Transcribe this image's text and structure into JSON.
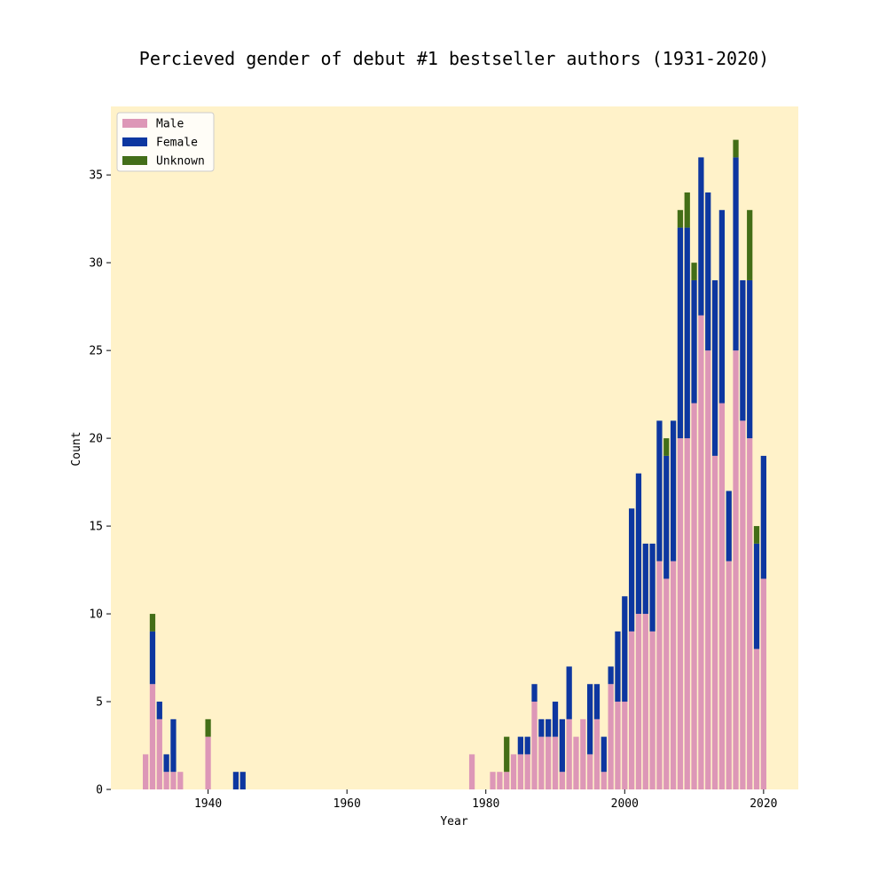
{
  "chart_data": {
    "type": "bar",
    "stacked": true,
    "title": "Percieved gender of debut #1 bestseller authors (1931-2020)",
    "xlabel": "Year",
    "ylabel": "Count",
    "xlim": [
      1926,
      2025
    ],
    "ylim": [
      0,
      38.9
    ],
    "xticks": [
      1940,
      1960,
      1980,
      2000,
      2020
    ],
    "yticks": [
      0,
      5,
      10,
      15,
      20,
      25,
      30,
      35
    ],
    "grid": false,
    "legend_position": "top-left",
    "plot_background": "#fff2c9",
    "x": [
      1931,
      1932,
      1933,
      1934,
      1935,
      1936,
      1940,
      1944,
      1945,
      1978,
      1981,
      1982,
      1983,
      1984,
      1985,
      1986,
      1987,
      1988,
      1989,
      1990,
      1991,
      1992,
      1993,
      1994,
      1995,
      1996,
      1997,
      1998,
      1999,
      2000,
      2001,
      2002,
      2003,
      2004,
      2005,
      2006,
      2007,
      2008,
      2009,
      2010,
      2011,
      2012,
      2013,
      2014,
      2015,
      2016,
      2017,
      2018,
      2019,
      2020
    ],
    "series": [
      {
        "name": "Male",
        "color": "#dd97b7",
        "values": [
          2,
          6,
          4,
          1,
          1,
          1,
          3,
          0,
          0,
          2,
          1,
          1,
          1,
          2,
          2,
          2,
          5,
          3,
          3,
          3,
          1,
          4,
          3,
          4,
          2,
          4,
          1,
          6,
          5,
          5,
          9,
          10,
          10,
          9,
          13,
          12,
          13,
          20,
          20,
          22,
          27,
          25,
          19,
          22,
          13,
          25,
          21,
          20,
          8,
          12
        ]
      },
      {
        "name": "Female",
        "color": "#0d37a0",
        "values": [
          0,
          3,
          1,
          1,
          3,
          0,
          0,
          1,
          1,
          0,
          0,
          0,
          0,
          0,
          1,
          1,
          1,
          1,
          1,
          2,
          3,
          3,
          0,
          0,
          4,
          2,
          2,
          1,
          4,
          6,
          7,
          8,
          4,
          5,
          8,
          7,
          8,
          12,
          12,
          7,
          9,
          9,
          10,
          11,
          4,
          11,
          8,
          9,
          6,
          7
        ]
      },
      {
        "name": "Unknown",
        "color": "#436e17",
        "values": [
          0,
          1,
          0,
          0,
          0,
          0,
          1,
          0,
          0,
          0,
          0,
          0,
          2,
          0,
          0,
          0,
          0,
          0,
          0,
          0,
          0,
          0,
          0,
          0,
          0,
          0,
          0,
          0,
          0,
          0,
          0,
          0,
          0,
          0,
          0,
          1,
          0,
          1,
          2,
          1,
          0,
          0,
          0,
          0,
          0,
          1,
          0,
          4,
          1,
          0
        ]
      }
    ]
  }
}
